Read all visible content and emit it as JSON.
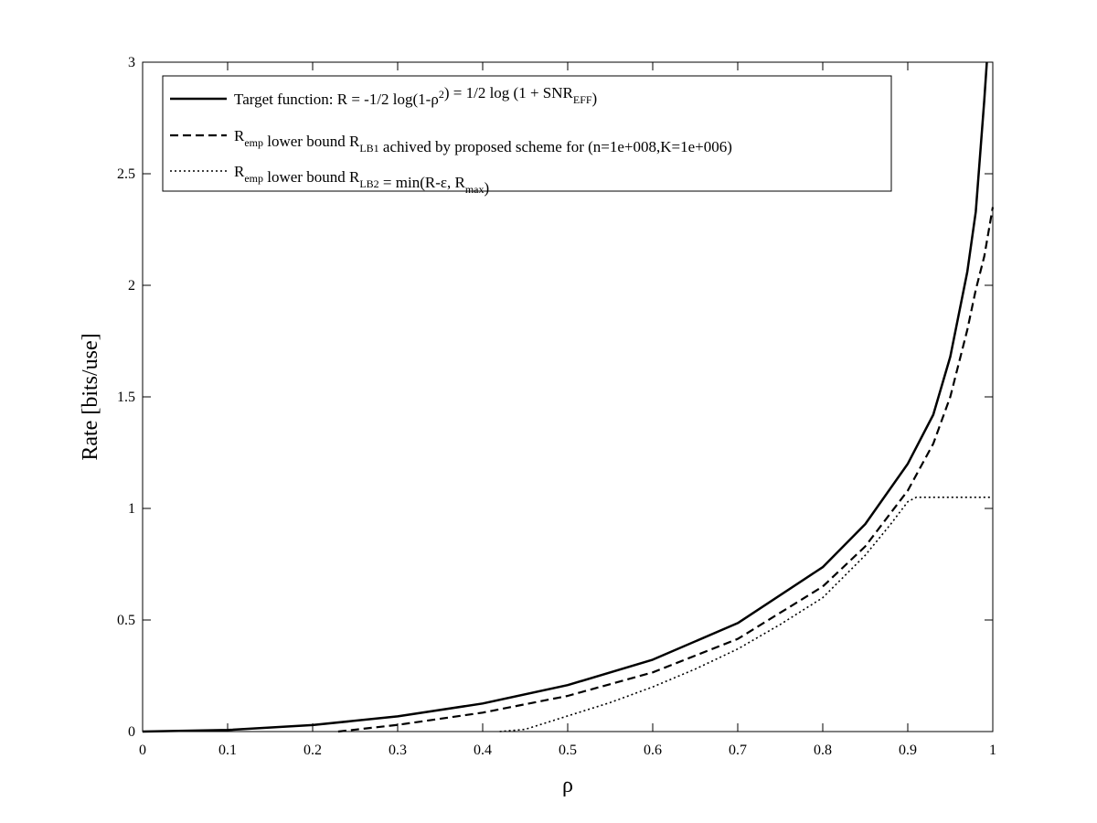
{
  "chart_data": {
    "type": "line",
    "xlabel": "ρ",
    "ylabel": "Rate [bits/use]",
    "xlim": [
      0,
      1
    ],
    "ylim": [
      0,
      3
    ],
    "xticks": [
      "0",
      "0.1",
      "0.2",
      "0.3",
      "0.4",
      "0.5",
      "0.6",
      "0.7",
      "0.8",
      "0.9",
      "1"
    ],
    "yticks": [
      "0",
      "0.5",
      "1",
      "1.5",
      "2",
      "2.5",
      "3"
    ],
    "grid": false,
    "legend_position": "top-left",
    "legend": [
      {
        "style": "solid",
        "parts": [
          {
            "t": "Target function: R = -1/2 log(1-ρ"
          },
          {
            "t": "2",
            "s": "sup"
          },
          {
            "t": ") = 1/2 log (1 + SNR"
          },
          {
            "t": "EFF",
            "s": "sub"
          },
          {
            "t": ")"
          }
        ]
      },
      {
        "style": "dashed",
        "parts": [
          {
            "t": "R"
          },
          {
            "t": "emp",
            "s": "sub"
          },
          {
            "t": " lower bound R"
          },
          {
            "t": "LB1",
            "s": "sub"
          },
          {
            "t": " achived by proposed scheme for (n=1e+008,K=1e+006)"
          }
        ]
      },
      {
        "style": "dotted",
        "parts": [
          {
            "t": "R"
          },
          {
            "t": "emp",
            "s": "sub"
          },
          {
            "t": " lower bound R"
          },
          {
            "t": "LB2",
            "s": "sub"
          },
          {
            "t": " = min(R-ε, R"
          },
          {
            "t": "max",
            "s": "sub"
          },
          {
            "t": ")"
          }
        ]
      }
    ],
    "series": [
      {
        "style": "solid",
        "x": [
          0,
          0.1,
          0.2,
          0.3,
          0.4,
          0.5,
          0.6,
          0.7,
          0.8,
          0.85,
          0.9,
          0.93,
          0.95,
          0.97,
          0.98,
          0.99,
          0.993
        ],
        "y": [
          0,
          0.007,
          0.029,
          0.068,
          0.126,
          0.208,
          0.322,
          0.486,
          0.737,
          0.93,
          1.2,
          1.42,
          1.68,
          2.06,
          2.33,
          2.83,
          3.0
        ]
      },
      {
        "style": "dashed",
        "x": [
          0.23,
          0.3,
          0.4,
          0.5,
          0.6,
          0.7,
          0.8,
          0.85,
          0.9,
          0.93,
          0.95,
          0.97,
          0.98,
          0.99,
          1.0
        ],
        "y": [
          0,
          0.03,
          0.085,
          0.16,
          0.265,
          0.415,
          0.65,
          0.83,
          1.08,
          1.29,
          1.5,
          1.8,
          1.98,
          2.13,
          2.35
        ]
      },
      {
        "style": "dotted",
        "x": [
          0.42,
          0.45,
          0.5,
          0.55,
          0.6,
          0.65,
          0.7,
          0.75,
          0.8,
          0.85,
          0.88,
          0.9,
          0.91,
          0.95,
          1.0
        ],
        "y": [
          0,
          0.01,
          0.07,
          0.13,
          0.2,
          0.28,
          0.37,
          0.48,
          0.6,
          0.79,
          0.93,
          1.03,
          1.05,
          1.05,
          1.05
        ]
      }
    ]
  }
}
